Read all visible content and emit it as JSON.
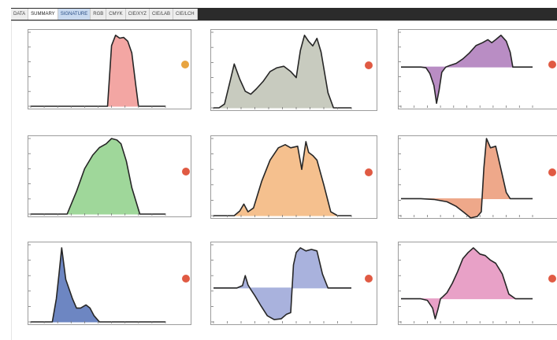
{
  "tabs": [
    {
      "label": "DATA",
      "active": false,
      "highlight": false
    },
    {
      "label": "SUMMARY",
      "active": true,
      "highlight": false
    },
    {
      "label": "SIGNATURE",
      "active": false,
      "highlight": true
    },
    {
      "label": "RGB",
      "active": false,
      "highlight": false
    },
    {
      "label": "CMYK",
      "active": false,
      "highlight": false
    },
    {
      "label": "CIE/XYZ",
      "active": false,
      "highlight": false
    },
    {
      "label": "CIE/LAB",
      "active": false,
      "highlight": false
    },
    {
      "label": "CIE/LCH",
      "active": false,
      "highlight": false
    }
  ],
  "colors": {
    "red": "#f3a6a3",
    "gray": "#c8cbbf",
    "purple": "#b98dc4",
    "green": "#9fd79a",
    "orange": "#f5c08e",
    "orange_red": "#eea88a",
    "blue": "#6d86c2",
    "lavender": "#a9b2dd",
    "pink": "#e8a1c7",
    "dot_red": "#e05a43",
    "dot_orange": "#e8a440"
  },
  "chart_data": [
    {
      "name": "panel-r1c1",
      "type": "area",
      "color": "red",
      "dot": "dot_orange",
      "baseline": 0,
      "x": [
        0,
        0.57,
        0.6,
        0.63,
        0.66,
        0.69,
        0.72,
        0.75,
        0.78,
        0.8,
        1
      ],
      "y": [
        0,
        0,
        0.82,
        0.96,
        0.92,
        0.93,
        0.88,
        0.72,
        0.28,
        0,
        0
      ]
    },
    {
      "name": "panel-r1c2",
      "type": "area",
      "color": "gray",
      "dot": "dot_red",
      "baseline": 0,
      "x": [
        0,
        0.04,
        0.08,
        0.12,
        0.15,
        0.19,
        0.23,
        0.27,
        0.31,
        0.36,
        0.41,
        0.46,
        0.51,
        0.56,
        0.6,
        0.63,
        0.66,
        0.69,
        0.72,
        0.75,
        0.78,
        0.83,
        0.87,
        0.92,
        1
      ],
      "y": [
        0,
        0,
        0.05,
        0.35,
        0.58,
        0.38,
        0.22,
        0.18,
        0.25,
        0.35,
        0.48,
        0.53,
        0.55,
        0.48,
        0.4,
        0.76,
        0.96,
        0.88,
        0.82,
        0.92,
        0.74,
        0.2,
        0,
        0,
        0
      ]
    },
    {
      "name": "panel-r1c3",
      "type": "area",
      "color": "purple",
      "dot": "dot_red",
      "baseline": 0.53,
      "x": [
        0,
        0.15,
        0.19,
        0.22,
        0.25,
        0.27,
        0.29,
        0.31,
        0.34,
        0.37,
        0.42,
        0.47,
        0.52,
        0.57,
        0.62,
        0.66,
        0.69,
        0.72,
        0.76,
        0.8,
        0.83,
        0.85,
        0.88,
        1
      ],
      "y": [
        0.53,
        0.53,
        0.52,
        0.44,
        0.28,
        0.04,
        0.22,
        0.46,
        0.53,
        0.55,
        0.58,
        0.64,
        0.72,
        0.82,
        0.86,
        0.9,
        0.86,
        0.9,
        0.96,
        0.88,
        0.73,
        0.53,
        0.53,
        0.53
      ]
    },
    {
      "name": "panel-r2c1",
      "type": "area",
      "color": "green",
      "dot": "dot_red",
      "baseline": 0,
      "x": [
        0,
        0.27,
        0.34,
        0.4,
        0.46,
        0.51,
        0.56,
        0.6,
        0.64,
        0.67,
        0.71,
        0.75,
        0.81,
        1
      ],
      "y": [
        0,
        0,
        0.3,
        0.6,
        0.78,
        0.88,
        0.93,
        1,
        0.98,
        0.93,
        0.7,
        0.35,
        0,
        0
      ]
    },
    {
      "name": "panel-r2c2",
      "type": "area",
      "color": "orange",
      "dot": "dot_red",
      "baseline": 0,
      "x": [
        0,
        0.15,
        0.19,
        0.22,
        0.25,
        0.29,
        0.35,
        0.41,
        0.47,
        0.52,
        0.56,
        0.61,
        0.64,
        0.67,
        0.69,
        0.72,
        0.75,
        0.8,
        0.85,
        0.9,
        1
      ],
      "y": [
        0,
        0,
        0.06,
        0.15,
        0.05,
        0.1,
        0.45,
        0.72,
        0.88,
        0.92,
        0.88,
        0.9,
        0.6,
        0.96,
        0.82,
        0.78,
        0.72,
        0.4,
        0.05,
        0,
        0
      ]
    },
    {
      "name": "panel-r2c3",
      "type": "area",
      "color": "orange_red",
      "dot": "dot_red",
      "baseline": 0.22,
      "x": [
        0,
        0.15,
        0.25,
        0.35,
        0.42,
        0.48,
        0.53,
        0.58,
        0.61,
        0.63,
        0.65,
        0.68,
        0.72,
        0.76,
        0.8,
        0.83,
        1
      ],
      "y": [
        0.22,
        0.22,
        0.21,
        0.18,
        0.12,
        0.04,
        -0.03,
        -0.01,
        0.05,
        0.62,
        1,
        0.88,
        0.9,
        0.6,
        0.3,
        0.22,
        0.22
      ]
    },
    {
      "name": "panel-r3c1",
      "type": "area",
      "color": "blue",
      "dot": "dot_red",
      "baseline": 0,
      "x": [
        0,
        0.16,
        0.19,
        0.21,
        0.23,
        0.26,
        0.28,
        0.31,
        0.34,
        0.37,
        0.41,
        0.44,
        0.47,
        0.51,
        0.57,
        1
      ],
      "y": [
        0,
        0,
        0.3,
        0.62,
        0.96,
        0.55,
        0.45,
        0.3,
        0.18,
        0.18,
        0.22,
        0.18,
        0.08,
        0,
        0,
        0
      ]
    },
    {
      "name": "panel-r3c2",
      "type": "area",
      "color": "lavender",
      "dot": "dot_red",
      "baseline": 0.44,
      "x": [
        0,
        0.17,
        0.21,
        0.23,
        0.25,
        0.27,
        0.3,
        0.34,
        0.39,
        0.44,
        0.49,
        0.53,
        0.56,
        0.58,
        0.6,
        0.63,
        0.67,
        0.71,
        0.75,
        0.79,
        0.83,
        1
      ],
      "y": [
        0.44,
        0.44,
        0.47,
        0.6,
        0.48,
        0.42,
        0.34,
        0.22,
        0.08,
        0.03,
        0.04,
        0.1,
        0.12,
        0.74,
        0.9,
        0.96,
        0.92,
        0.94,
        0.92,
        0.62,
        0.44,
        0.44
      ]
    },
    {
      "name": "panel-r3c3",
      "type": "area",
      "color": "pink",
      "dot": "dot_red",
      "baseline": 0.3,
      "x": [
        0,
        0.15,
        0.2,
        0.24,
        0.26,
        0.28,
        0.3,
        0.32,
        0.35,
        0.39,
        0.43,
        0.47,
        0.51,
        0.55,
        0.6,
        0.64,
        0.68,
        0.72,
        0.77,
        0.82,
        0.87,
        1
      ],
      "y": [
        0.3,
        0.3,
        0.28,
        0.18,
        0.04,
        0.16,
        0.3,
        0.33,
        0.38,
        0.5,
        0.65,
        0.82,
        0.9,
        0.96,
        0.88,
        0.86,
        0.8,
        0.76,
        0.62,
        0.36,
        0.3,
        0.3
      ]
    }
  ]
}
